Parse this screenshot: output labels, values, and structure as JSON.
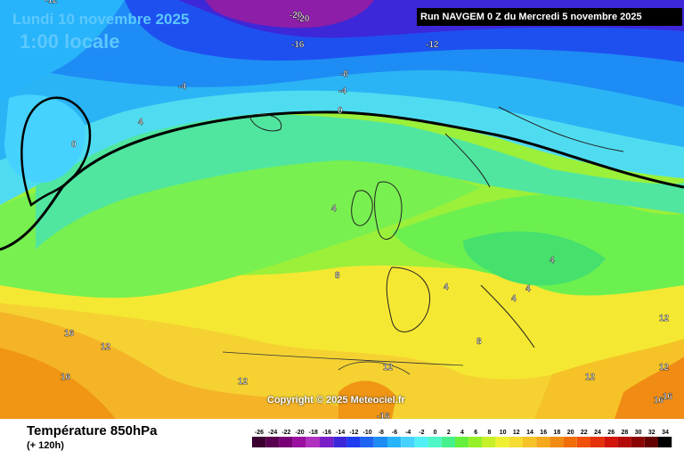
{
  "header": {
    "date_line": "Lundi 10 novembre 2025",
    "time_line": "1:00 locale",
    "run_info": "Run NAVGEM 0 Z du Mercredi 5 novembre 2025"
  },
  "footer": {
    "parameter": "Température 850hPa",
    "lead_time": "(+ 120h)",
    "copyright": "Copyright © 2025 Meteociel.fr"
  },
  "map_labels": [
    "-12",
    "-20",
    "-20",
    "-16",
    "-12",
    "-8",
    "-4",
    "-4",
    "0",
    "4",
    "0",
    "4",
    "8",
    "4",
    "4",
    "4",
    "4",
    "12",
    "16",
    "12",
    "8",
    "12",
    "16",
    "12",
    "12",
    "-16",
    "16",
    "12",
    "16"
  ],
  "legend": {
    "ticks": [
      "-26",
      "-24",
      "-22",
      "-20",
      "-18",
      "-16",
      "-14",
      "-12",
      "-10",
      "-8",
      "-6",
      "-4",
      "-2",
      "0",
      "2",
      "4",
      "6",
      "8",
      "10",
      "12",
      "14",
      "16",
      "18",
      "20",
      "22",
      "24",
      "26",
      "28",
      "30",
      "32",
      "34"
    ],
    "colors": [
      "#3b0030",
      "#5a0050",
      "#7a0078",
      "#9a10a0",
      "#b030c0",
      "#7a1ec8",
      "#3c28d8",
      "#1e3cf0",
      "#1e64f0",
      "#1e8cf5",
      "#28b4fa",
      "#46d2ff",
      "#50f0f5",
      "#50f5c8",
      "#46f08c",
      "#64f03c",
      "#96f028",
      "#c8f028",
      "#f0f032",
      "#f5dc32",
      "#f5c328",
      "#f5aa1e",
      "#f08c14",
      "#f06e0a",
      "#f0500a",
      "#e6320a",
      "#d2140a",
      "#b40a0a",
      "#8c0505",
      "#640000",
      "#000000"
    ]
  },
  "colors": {
    "overlay_text": "#5cc8ff",
    "contour": "#000000"
  }
}
